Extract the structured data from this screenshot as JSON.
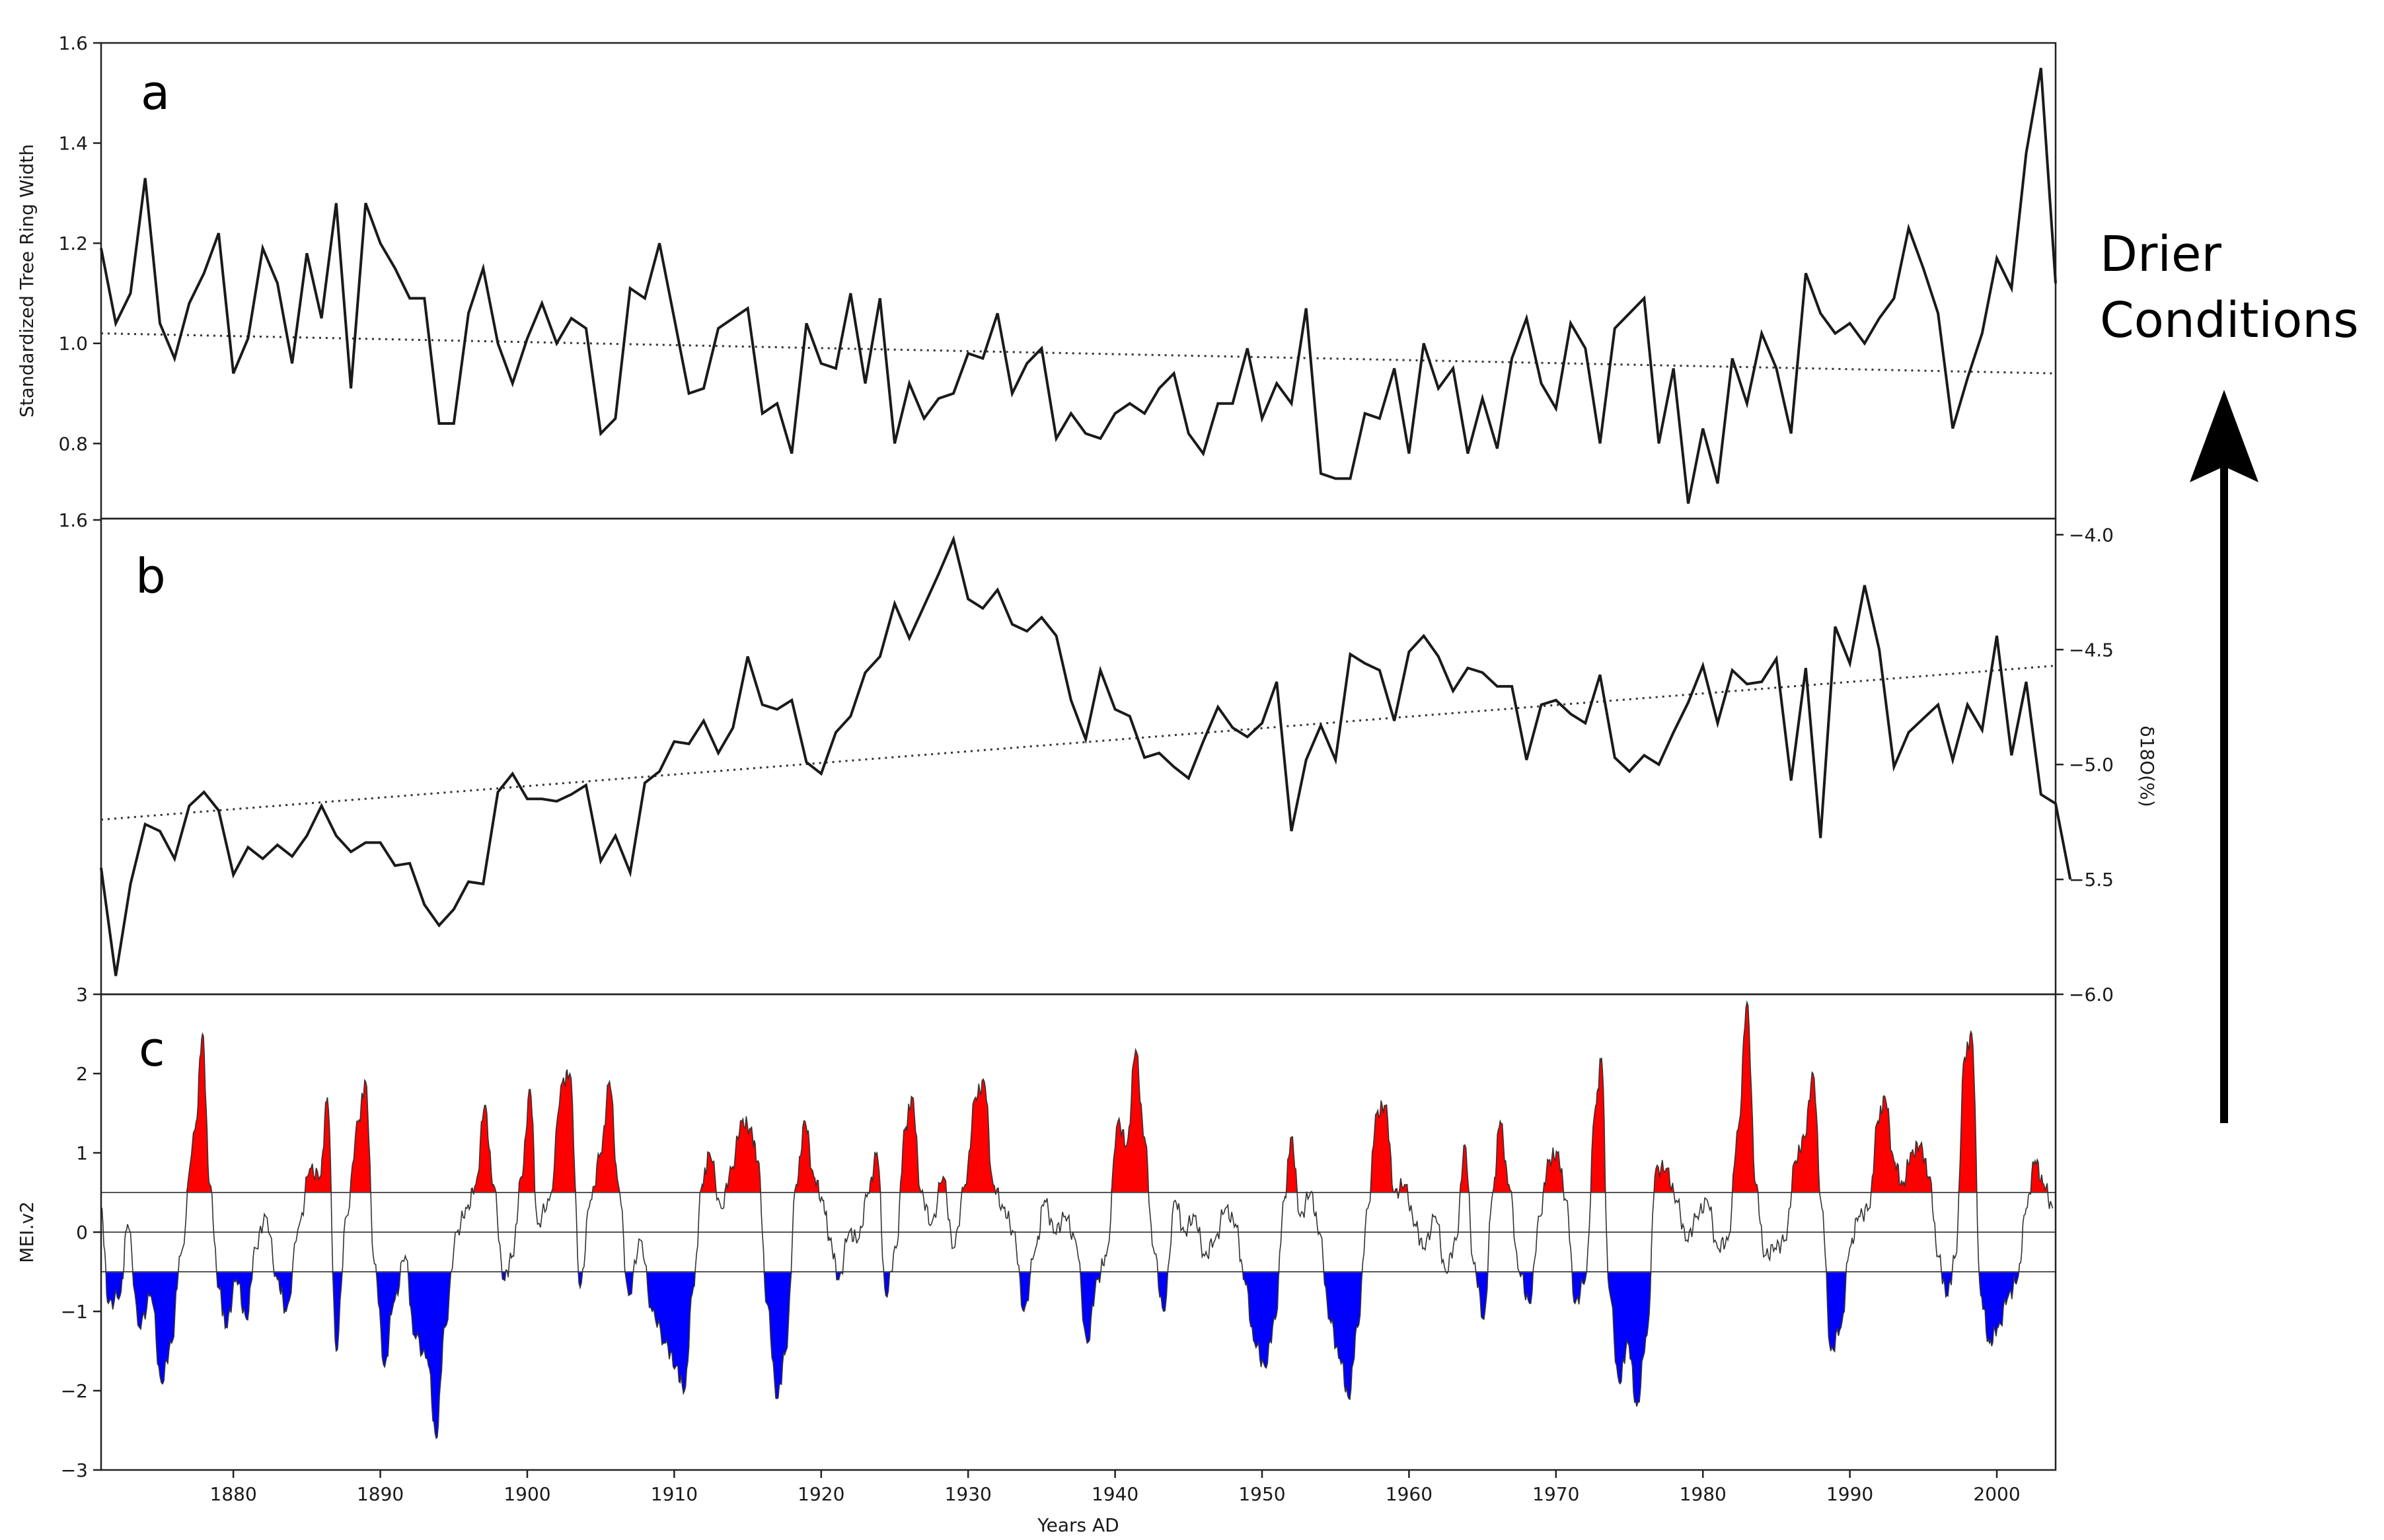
{
  "annotation": {
    "line1": "Drier",
    "line2": "Conditions"
  },
  "colors": {
    "series": "#1a1a1a",
    "positive_fill": "#ff0000",
    "negative_fill": "#0000ff",
    "arrow": "#000000"
  },
  "chart_data": [
    {
      "type": "line",
      "panel": "a",
      "ylabel": "Standardized Tree Ring Width",
      "xlabel": "",
      "xlim": [
        1871,
        2004
      ],
      "ylim": [
        1.6,
        0.65
      ],
      "y_inverted": true,
      "yticks": [
        0.8,
        1.0,
        1.2,
        1.4,
        1.6
      ],
      "ytick_labels": [
        "0.8",
        "1.0",
        "1.2",
        "1.4",
        "1.6"
      ],
      "x_start": 1871,
      "x_step": 1,
      "values": [
        1.19,
        1.04,
        1.1,
        1.33,
        1.04,
        0.97,
        1.08,
        1.14,
        1.22,
        0.94,
        1.01,
        1.19,
        1.12,
        0.96,
        1.18,
        1.05,
        1.28,
        0.91,
        1.28,
        1.2,
        1.15,
        1.09,
        1.09,
        0.84,
        0.84,
        1.06,
        1.15,
        1.0,
        0.92,
        1.01,
        1.08,
        1.0,
        1.05,
        1.03,
        0.82,
        0.85,
        1.11,
        1.09,
        1.2,
        1.05,
        0.9,
        0.91,
        1.03,
        1.05,
        1.07,
        0.86,
        0.88,
        0.78,
        1.04,
        0.96,
        0.95,
        1.1,
        0.92,
        1.09,
        0.8,
        0.92,
        0.85,
        0.89,
        0.9,
        0.98,
        0.97,
        1.06,
        0.9,
        0.96,
        0.99,
        0.81,
        0.86,
        0.82,
        0.81,
        0.86,
        0.88,
        0.86,
        0.91,
        0.94,
        0.82,
        0.78,
        0.88,
        0.88,
        0.99,
        0.85,
        0.92,
        0.88,
        1.07,
        0.74,
        0.73,
        0.73,
        0.86,
        0.85,
        0.95,
        0.78,
        1.0,
        0.91,
        0.95,
        0.78,
        0.89,
        0.79,
        0.97,
        1.05,
        0.92,
        0.87,
        1.04,
        0.99,
        0.8,
        1.03,
        1.06,
        1.09,
        0.8,
        0.95,
        0.68,
        0.83,
        0.72,
        0.97,
        0.88,
        1.02,
        0.95,
        0.82,
        1.14,
        1.06,
        1.02,
        1.04,
        1.0,
        1.05,
        1.09,
        1.23,
        1.15,
        1.06,
        0.83,
        0.93,
        1.02,
        1.17,
        1.11,
        1.38,
        1.55,
        1.12
      ],
      "trend": {
        "start": [
          1871,
          1.02
        ],
        "end": [
          2004,
          0.94
        ],
        "style": "dotted"
      }
    },
    {
      "type": "line",
      "panel": "b",
      "ylabel": "δ18O(%)",
      "xlabel": "",
      "xlim": [
        1871,
        2004
      ],
      "ylim": [
        -6.0,
        -3.93
      ],
      "yticks": [
        -4.0,
        -4.5,
        -5.0,
        -5.5,
        -6.0
      ],
      "ytick_labels": [
        "−4.0",
        "−4.5",
        "−5.0",
        "−5.5",
        "−6.0"
      ],
      "left_tick_top": "1.6",
      "x_start": 1871,
      "x_step": 1,
      "values": [
        -5.45,
        -5.92,
        -5.52,
        -5.26,
        -5.29,
        -5.41,
        -5.18,
        -5.12,
        -5.2,
        -5.48,
        -5.36,
        -5.41,
        -5.35,
        -5.4,
        -5.31,
        -5.18,
        -5.31,
        -5.38,
        -5.34,
        -5.34,
        -5.44,
        -5.43,
        -5.61,
        -5.7,
        -5.63,
        -5.51,
        -5.52,
        -5.12,
        -5.04,
        -5.15,
        -5.15,
        -5.16,
        -5.13,
        -5.09,
        -5.42,
        -5.31,
        -5.47,
        -5.08,
        -5.03,
        -4.9,
        -4.91,
        -4.81,
        -4.95,
        -4.84,
        -4.53,
        -4.74,
        -4.76,
        -4.72,
        -4.99,
        -5.04,
        -4.86,
        -4.79,
        -4.6,
        -4.53,
        -4.3,
        -4.45,
        -4.31,
        -4.17,
        -4.02,
        -4.28,
        -4.32,
        -4.24,
        -4.39,
        -4.42,
        -4.36,
        -4.44,
        -4.72,
        -4.89,
        -4.59,
        -4.76,
        -4.79,
        -4.97,
        -4.95,
        -5.01,
        -5.06,
        -4.9,
        -4.75,
        -4.84,
        -4.88,
        -4.82,
        -4.64,
        -5.29,
        -4.98,
        -4.83,
        -4.98,
        -4.52,
        -4.56,
        -4.59,
        -4.81,
        -4.51,
        -4.44,
        -4.53,
        -4.68,
        -4.58,
        -4.6,
        -4.66,
        -4.66,
        -4.98,
        -4.74,
        -4.72,
        -4.78,
        -4.82,
        -4.61,
        -4.97,
        -5.03,
        -4.96,
        -5.0,
        -4.86,
        -4.73,
        -4.57,
        -4.82,
        -4.59,
        -4.65,
        -4.64,
        -4.54,
        -5.07,
        -4.58,
        -5.32,
        -4.4,
        -4.56,
        -4.22,
        -4.5,
        -5.01,
        -4.86,
        -4.8,
        -4.74,
        -4.98,
        -4.74,
        -4.85,
        -4.44,
        -4.96,
        -4.64,
        -5.13,
        -5.17,
        -5.5
      ],
      "trend": {
        "start": [
          1871,
          -5.24
        ],
        "end": [
          2004,
          -4.57
        ],
        "style": "dotted"
      }
    },
    {
      "type": "area",
      "panel": "c",
      "ylabel": "MEI.v2",
      "xlabel": "Years AD",
      "xlim": [
        1871,
        2004
      ],
      "ylim": [
        -3,
        3
      ],
      "yticks": [
        3,
        2,
        1,
        0,
        -1,
        -2,
        -3
      ],
      "ytick_labels": [
        "3",
        "2",
        "1",
        "0",
        "−1",
        "−2",
        "−3"
      ],
      "xticks": [
        1880,
        1890,
        1900,
        1910,
        1920,
        1930,
        1940,
        1950,
        1960,
        1970,
        1980,
        1990,
        2000
      ],
      "xtick_labels": [
        "1880",
        "1890",
        "1900",
        "1910",
        "1920",
        "1930",
        "1940",
        "1950",
        "1960",
        "1970",
        "1980",
        "1990",
        "2000"
      ],
      "thresholds": [
        0.5,
        0,
        -0.5
      ],
      "positive_fill_above": 0.5,
      "negative_fill_below": -0.5,
      "peaks": [
        [
          1871.0,
          0.3
        ],
        [
          1871.5,
          -0.9
        ],
        [
          1872.3,
          -0.8
        ],
        [
          1872.8,
          0.1
        ],
        [
          1873.6,
          -1.2
        ],
        [
          1874.4,
          -0.8
        ],
        [
          1875.1,
          -1.9
        ],
        [
          1875.8,
          -1.4
        ],
        [
          1876.4,
          -0.3
        ],
        [
          1877.4,
          1.3
        ],
        [
          1877.9,
          2.5
        ],
        [
          1878.4,
          0.6
        ],
        [
          1879.0,
          -0.7
        ],
        [
          1879.5,
          -1.2
        ],
        [
          1880.2,
          -0.6
        ],
        [
          1880.9,
          -1.1
        ],
        [
          1881.5,
          -0.2
        ],
        [
          1882.2,
          0.2
        ],
        [
          1883.0,
          -0.6
        ],
        [
          1883.6,
          -1.0
        ],
        [
          1884.5,
          0.1
        ],
        [
          1885.2,
          0.8
        ],
        [
          1885.9,
          0.7
        ],
        [
          1886.4,
          1.7
        ],
        [
          1887.0,
          -1.5
        ],
        [
          1887.7,
          0.2
        ],
        [
          1888.5,
          1.4
        ],
        [
          1889.0,
          1.9
        ],
        [
          1889.6,
          -0.4
        ],
        [
          1890.3,
          -1.7
        ],
        [
          1890.9,
          -0.9
        ],
        [
          1891.7,
          -0.3
        ],
        [
          1892.3,
          -1.3
        ],
        [
          1893.2,
          -1.6
        ],
        [
          1893.8,
          -2.6
        ],
        [
          1894.4,
          -1.2
        ],
        [
          1895.2,
          0.0
        ],
        [
          1895.9,
          0.3
        ],
        [
          1896.5,
          0.6
        ],
        [
          1897.1,
          1.6
        ],
        [
          1897.7,
          0.6
        ],
        [
          1898.4,
          -0.6
        ],
        [
          1899.0,
          -0.3
        ],
        [
          1899.6,
          0.7
        ],
        [
          1900.2,
          1.8
        ],
        [
          1900.7,
          0.1
        ],
        [
          1901.5,
          0.4
        ],
        [
          1902.4,
          1.9
        ],
        [
          1902.9,
          2.0
        ],
        [
          1903.6,
          -0.7
        ],
        [
          1904.3,
          0.4
        ],
        [
          1905.0,
          1.0
        ],
        [
          1905.6,
          1.9
        ],
        [
          1906.2,
          0.6
        ],
        [
          1906.9,
          -0.8
        ],
        [
          1907.7,
          -0.1
        ],
        [
          1908.5,
          -1.0
        ],
        [
          1909.4,
          -1.4
        ],
        [
          1910.1,
          -1.7
        ],
        [
          1910.7,
          -2.0
        ],
        [
          1911.3,
          -0.7
        ],
        [
          1911.9,
          0.6
        ],
        [
          1912.4,
          1.0
        ],
        [
          1913.2,
          0.3
        ],
        [
          1913.9,
          0.8
        ],
        [
          1914.6,
          1.4
        ],
        [
          1915.2,
          1.3
        ],
        [
          1915.7,
          0.9
        ],
        [
          1916.3,
          -0.9
        ],
        [
          1917.0,
          -2.1
        ],
        [
          1917.6,
          -1.5
        ],
        [
          1918.3,
          0.6
        ],
        [
          1918.9,
          1.4
        ],
        [
          1919.5,
          0.7
        ],
        [
          1920.1,
          0.4
        ],
        [
          1920.6,
          -0.1
        ],
        [
          1921.2,
          -0.6
        ],
        [
          1921.9,
          0.0
        ],
        [
          1922.5,
          -0.1
        ],
        [
          1923.2,
          0.5
        ],
        [
          1923.8,
          1.0
        ],
        [
          1924.4,
          -0.8
        ],
        [
          1925.1,
          -0.2
        ],
        [
          1925.7,
          1.3
        ],
        [
          1926.2,
          1.7
        ],
        [
          1926.8,
          0.5
        ],
        [
          1927.5,
          0.1
        ],
        [
          1928.3,
          0.7
        ],
        [
          1929.0,
          -0.2
        ],
        [
          1929.8,
          0.6
        ],
        [
          1930.5,
          1.7
        ],
        [
          1931.1,
          1.9
        ],
        [
          1931.7,
          0.6
        ],
        [
          1932.4,
          0.3
        ],
        [
          1933.1,
          0.0
        ],
        [
          1933.8,
          -1.0
        ],
        [
          1934.6,
          -0.2
        ],
        [
          1935.2,
          0.4
        ],
        [
          1935.9,
          0.0
        ],
        [
          1936.6,
          0.2
        ],
        [
          1937.3,
          -0.1
        ],
        [
          1938.1,
          -1.4
        ],
        [
          1938.8,
          -0.6
        ],
        [
          1939.4,
          -0.3
        ],
        [
          1940.2,
          1.4
        ],
        [
          1940.8,
          1.1
        ],
        [
          1941.4,
          2.3
        ],
        [
          1942.0,
          1.2
        ],
        [
          1942.6,
          -0.2
        ],
        [
          1943.3,
          -1.0
        ],
        [
          1944.1,
          0.4
        ],
        [
          1944.7,
          0.0
        ],
        [
          1945.4,
          0.2
        ],
        [
          1946.1,
          -0.3
        ],
        [
          1946.8,
          -0.1
        ],
        [
          1947.5,
          0.3
        ],
        [
          1948.2,
          0.1
        ],
        [
          1948.8,
          -0.6
        ],
        [
          1949.5,
          -1.4
        ],
        [
          1950.2,
          -1.7
        ],
        [
          1950.9,
          -1.1
        ],
        [
          1951.5,
          0.4
        ],
        [
          1952.0,
          1.2
        ],
        [
          1952.6,
          0.2
        ],
        [
          1953.3,
          0.5
        ],
        [
          1953.9,
          0.0
        ],
        [
          1954.6,
          -1.1
        ],
        [
          1955.3,
          -1.6
        ],
        [
          1955.9,
          -2.1
        ],
        [
          1956.5,
          -1.2
        ],
        [
          1957.2,
          0.3
        ],
        [
          1957.8,
          1.5
        ],
        [
          1958.4,
          1.6
        ],
        [
          1959.0,
          0.5
        ],
        [
          1959.7,
          0.6
        ],
        [
          1960.4,
          0.1
        ],
        [
          1961.0,
          -0.2
        ],
        [
          1961.8,
          0.2
        ],
        [
          1962.5,
          -0.5
        ],
        [
          1963.2,
          -0.1
        ],
        [
          1963.8,
          1.1
        ],
        [
          1964.4,
          -0.4
        ],
        [
          1965.1,
          -1.1
        ],
        [
          1965.7,
          0.5
        ],
        [
          1966.2,
          1.4
        ],
        [
          1966.8,
          0.6
        ],
        [
          1967.5,
          -0.5
        ],
        [
          1968.2,
          -0.9
        ],
        [
          1968.9,
          0.2
        ],
        [
          1969.5,
          0.9
        ],
        [
          1970.1,
          1.0
        ],
        [
          1970.7,
          0.4
        ],
        [
          1971.3,
          -0.9
        ],
        [
          1972.0,
          -0.6
        ],
        [
          1972.7,
          1.6
        ],
        [
          1973.1,
          2.2
        ],
        [
          1973.6,
          -0.7
        ],
        [
          1974.3,
          -1.9
        ],
        [
          1974.9,
          -1.4
        ],
        [
          1975.5,
          -2.2
        ],
        [
          1976.2,
          -1.3
        ],
        [
          1976.8,
          0.8
        ],
        [
          1977.5,
          0.8
        ],
        [
          1978.2,
          0.4
        ],
        [
          1978.9,
          -0.1
        ],
        [
          1979.6,
          0.2
        ],
        [
          1980.3,
          0.4
        ],
        [
          1981.0,
          -0.2
        ],
        [
          1981.7,
          -0.1
        ],
        [
          1982.4,
          1.3
        ],
        [
          1983.0,
          2.9
        ],
        [
          1983.6,
          0.6
        ],
        [
          1984.2,
          -0.3
        ],
        [
          1984.9,
          -0.2
        ],
        [
          1985.6,
          -0.1
        ],
        [
          1986.3,
          0.9
        ],
        [
          1986.9,
          1.2
        ],
        [
          1987.5,
          2.0
        ],
        [
          1988.1,
          0.3
        ],
        [
          1988.7,
          -1.5
        ],
        [
          1989.4,
          -1.2
        ],
        [
          1990.0,
          -0.2
        ],
        [
          1990.6,
          0.2
        ],
        [
          1991.3,
          0.3
        ],
        [
          1991.9,
          1.4
        ],
        [
          1992.4,
          1.7
        ],
        [
          1993.0,
          0.9
        ],
        [
          1993.6,
          0.6
        ],
        [
          1994.2,
          1.0
        ],
        [
          1994.8,
          1.1
        ],
        [
          1995.4,
          0.7
        ],
        [
          1996.0,
          -0.3
        ],
        [
          1996.6,
          -0.8
        ],
        [
          1997.2,
          -0.3
        ],
        [
          1997.8,
          2.2
        ],
        [
          1998.3,
          2.5
        ],
        [
          1998.9,
          -0.8
        ],
        [
          1999.5,
          -1.4
        ],
        [
          2000.1,
          -1.2
        ],
        [
          2000.8,
          -0.8
        ],
        [
          2001.4,
          -0.6
        ],
        [
          2002.0,
          0.3
        ],
        [
          2002.6,
          0.9
        ],
        [
          2003.2,
          0.6
        ],
        [
          2003.8,
          0.3
        ]
      ]
    }
  ]
}
